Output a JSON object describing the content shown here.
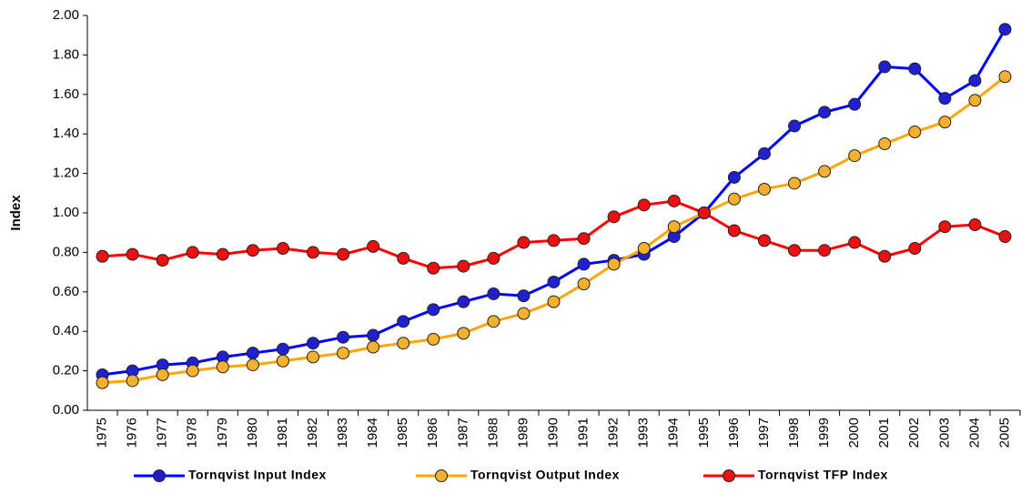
{
  "chart_data": {
    "type": "line",
    "y_label": "Index",
    "categories": [
      "1975",
      "1976",
      "1977",
      "1978",
      "1979",
      "1980",
      "1981",
      "1982",
      "1983",
      "1984",
      "1985",
      "1986",
      "1987",
      "1988",
      "1989",
      "1990",
      "1991",
      "1992",
      "1993",
      "1994",
      "1995",
      "1996",
      "1997",
      "1998",
      "1999",
      "2000",
      "2001",
      "2002",
      "2003",
      "2004",
      "2005"
    ],
    "series": [
      {
        "name": "Tornqvist Input Index",
        "color": "#0000ff",
        "marker_color": "#2020d0",
        "values": [
          0.18,
          0.2,
          0.23,
          0.24,
          0.27,
          0.29,
          0.31,
          0.34,
          0.37,
          0.38,
          0.45,
          0.51,
          0.55,
          0.59,
          0.58,
          0.65,
          0.74,
          0.76,
          0.79,
          0.88,
          1.0,
          1.18,
          1.3,
          1.44,
          1.51,
          1.55,
          1.74,
          1.73,
          1.58,
          1.67,
          1.93
        ]
      },
      {
        "name": "Tornqvist Output Index",
        "color": "#ffa500",
        "marker_color": "#f6b030",
        "values": [
          0.14,
          0.15,
          0.18,
          0.2,
          0.22,
          0.23,
          0.25,
          0.27,
          0.29,
          0.32,
          0.34,
          0.36,
          0.39,
          0.45,
          0.49,
          0.55,
          0.64,
          0.74,
          0.82,
          0.93,
          1.0,
          1.07,
          1.12,
          1.15,
          1.21,
          1.29,
          1.35,
          1.41,
          1.46,
          1.57,
          1.69
        ]
      },
      {
        "name": "Tornqvist TFP Index",
        "color": "#ff0000",
        "marker_color": "#ee1010",
        "values": [
          0.78,
          0.79,
          0.76,
          0.8,
          0.79,
          0.81,
          0.82,
          0.8,
          0.79,
          0.83,
          0.77,
          0.72,
          0.73,
          0.77,
          0.85,
          0.86,
          0.87,
          0.98,
          1.04,
          1.06,
          1.0,
          0.91,
          0.86,
          0.81,
          0.81,
          0.85,
          0.78,
          0.82,
          0.93,
          0.94,
          0.88
        ]
      }
    ],
    "ylim": [
      0,
      2
    ],
    "yticks": [
      {
        "value": 0,
        "label": "0.00"
      },
      {
        "value": 0.2,
        "label": "0.20"
      },
      {
        "value": 0.4,
        "label": "0.40"
      },
      {
        "value": 0.6,
        "label": "0.60"
      },
      {
        "value": 0.8,
        "label": "0.80"
      },
      {
        "value": 1,
        "label": "1.00"
      },
      {
        "value": 1.2,
        "label": "1.20"
      },
      {
        "value": 1.4,
        "label": "1.40"
      },
      {
        "value": 1.6,
        "label": "1.60"
      },
      {
        "value": 1.8,
        "label": "1.80"
      },
      {
        "value": 2,
        "label": "2.00"
      }
    ],
    "legend": "bottom",
    "grid": false
  }
}
